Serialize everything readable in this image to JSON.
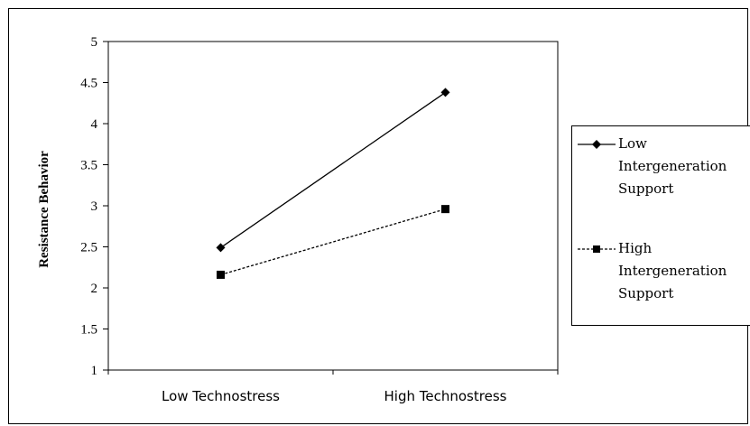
{
  "chart_data": {
    "type": "line",
    "title": "",
    "xlabel": "",
    "ylabel": "Resistance Behavior",
    "categories": [
      "Low Technostress",
      "High Technostress"
    ],
    "ylim": [
      1,
      5
    ],
    "yticks": [
      "1",
      "1.5",
      "2",
      "2.5",
      "3",
      "3.5",
      "4",
      "4.5",
      "5"
    ],
    "grid": false,
    "legend_position": "right",
    "series": [
      {
        "name": "Low Intergeneration Support",
        "name_lines": [
          "Low",
          "Intergeneration",
          "Support"
        ],
        "values": [
          2.49,
          4.38
        ],
        "marker": "diamond",
        "line_style": "solid",
        "color": "#000000"
      },
      {
        "name": "High Intergeneration Support",
        "name_lines": [
          "High",
          "Intergeneration",
          "Support"
        ],
        "values": [
          2.16,
          2.96
        ],
        "marker": "square",
        "line_style": "dashed",
        "color": "#000000"
      }
    ]
  }
}
